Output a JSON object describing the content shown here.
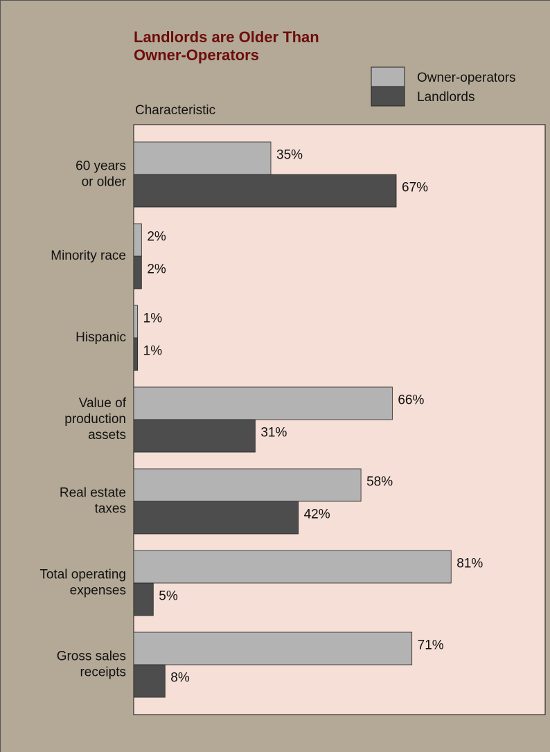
{
  "chart_data": {
    "type": "bar",
    "orientation": "horizontal",
    "title": [
      "Landlords are Older Than",
      "Owner-Operators"
    ],
    "y_label": "Characteristic",
    "categories": [
      [
        "60 years",
        "or older"
      ],
      [
        "Minority race"
      ],
      [
        "Hispanic"
      ],
      [
        "Value of",
        "production",
        "assets"
      ],
      [
        "Real estate",
        "taxes"
      ],
      [
        "Total operating",
        "expenses"
      ],
      [
        "Gross sales",
        "receipts"
      ]
    ],
    "series": [
      {
        "name": "Owner-operators",
        "color": "#b3b3b3",
        "values": [
          35,
          2,
          1,
          66,
          58,
          81,
          71
        ],
        "value_labels": [
          "35%",
          "2%",
          "1%",
          "66%",
          "58%",
          "81%",
          "71%"
        ]
      },
      {
        "name": "Landlords",
        "color": "#4d4d4d",
        "values": [
          67,
          2,
          1,
          31,
          42,
          5,
          8
        ],
        "value_labels": [
          "67%",
          "2%",
          "1%",
          "31%",
          "42%",
          "5%",
          "8%"
        ]
      }
    ],
    "xlim": [
      0,
      105
    ],
    "legend": "top-right"
  }
}
